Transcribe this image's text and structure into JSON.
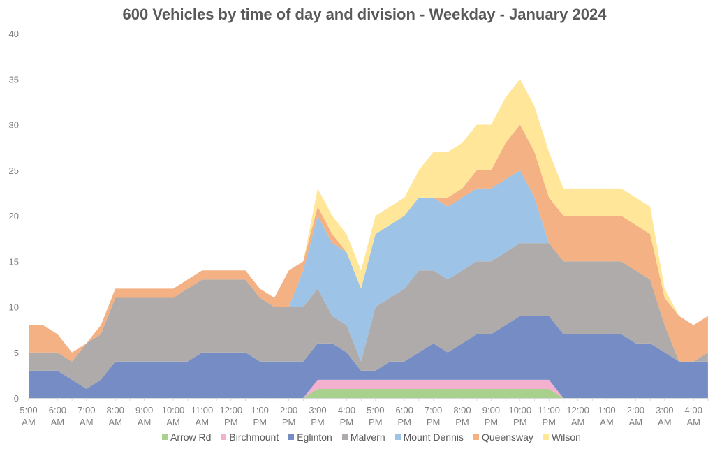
{
  "chart_data": {
    "type": "area",
    "stacked": true,
    "title": "600 Vehicles by time of day and division - Weekday - January 2024",
    "xlabel": "",
    "ylabel": "",
    "ylim": [
      0,
      40
    ],
    "yticks": [
      "0",
      "5",
      "10",
      "15",
      "20",
      "25",
      "30",
      "35",
      "40"
    ],
    "grid": false,
    "legend_position": "bottom",
    "x": [
      "5:00 AM",
      "5:30 AM",
      "6:00 AM",
      "6:30 AM",
      "7:00 AM",
      "7:30 AM",
      "8:00 AM",
      "8:30 AM",
      "9:00 AM",
      "9:30 AM",
      "10:00 AM",
      "10:30 AM",
      "11:00 AM",
      "11:30 AM",
      "12:00 PM",
      "12:30 PM",
      "1:00 PM",
      "1:30 PM",
      "2:00 PM",
      "2:30 PM",
      "3:00 PM",
      "3:30 PM",
      "4:00 PM",
      "4:30 PM",
      "5:00 PM",
      "5:30 PM",
      "6:00 PM",
      "6:30 PM",
      "7:00 PM",
      "7:30 PM",
      "8:00 PM",
      "8:30 PM",
      "9:00 PM",
      "9:30 PM",
      "10:00 PM",
      "10:30 PM",
      "11:00 PM",
      "11:30 PM",
      "12:00 AM",
      "12:30 AM",
      "1:00 AM",
      "1:30 AM",
      "2:00 AM",
      "2:30 AM",
      "3:00 AM",
      "3:30 AM",
      "4:00 AM",
      "4:30 AM"
    ],
    "xtick_labels": [
      {
        "line1": "5:00",
        "line2": "AM"
      },
      {
        "line1": "6:00",
        "line2": "AM"
      },
      {
        "line1": "7:00",
        "line2": "AM"
      },
      {
        "line1": "8:00",
        "line2": "AM"
      },
      {
        "line1": "9:00",
        "line2": "AM"
      },
      {
        "line1": "10:00",
        "line2": "AM"
      },
      {
        "line1": "11:00",
        "line2": "AM"
      },
      {
        "line1": "12:00",
        "line2": "PM"
      },
      {
        "line1": "1:00",
        "line2": "PM"
      },
      {
        "line1": "2:00",
        "line2": "PM"
      },
      {
        "line1": "3:00",
        "line2": "PM"
      },
      {
        "line1": "4:00",
        "line2": "PM"
      },
      {
        "line1": "5:00",
        "line2": "PM"
      },
      {
        "line1": "6:00",
        "line2": "PM"
      },
      {
        "line1": "7:00",
        "line2": "PM"
      },
      {
        "line1": "8:00",
        "line2": "PM"
      },
      {
        "line1": "9:00",
        "line2": "PM"
      },
      {
        "line1": "10:00",
        "line2": "PM"
      },
      {
        "line1": "11:00",
        "line2": "PM"
      },
      {
        "line1": "12:00",
        "line2": "AM"
      },
      {
        "line1": "1:00",
        "line2": "AM"
      },
      {
        "line1": "2:00",
        "line2": "AM"
      },
      {
        "line1": "3:00",
        "line2": "AM"
      },
      {
        "line1": "4:00",
        "line2": "AM"
      }
    ],
    "series": [
      {
        "name": "Arrow Rd",
        "color": "#a9d18e",
        "values": [
          0,
          0,
          0,
          0,
          0,
          0,
          0,
          0,
          0,
          0,
          0,
          0,
          0,
          0,
          0,
          0,
          0,
          0,
          0,
          0,
          1,
          1,
          1,
          1,
          1,
          1,
          1,
          1,
          1,
          1,
          1,
          1,
          1,
          1,
          1,
          1,
          1,
          0,
          0,
          0,
          0,
          0,
          0,
          0,
          0,
          0,
          0,
          0
        ]
      },
      {
        "name": "Birchmount",
        "color": "#f4b0cf",
        "values": [
          0,
          0,
          0,
          0,
          0,
          0,
          0,
          0,
          0,
          0,
          0,
          0,
          0,
          0,
          0,
          0,
          0,
          0,
          0,
          0,
          1,
          1,
          1,
          1,
          1,
          1,
          1,
          1,
          1,
          1,
          1,
          1,
          1,
          1,
          1,
          1,
          1,
          0,
          0,
          0,
          0,
          0,
          0,
          0,
          0,
          0,
          0,
          0
        ]
      },
      {
        "name": "Eglinton",
        "color": "#758cc5",
        "values": [
          3,
          3,
          3,
          2,
          1,
          2,
          4,
          4,
          4,
          4,
          4,
          4,
          5,
          5,
          5,
          5,
          4,
          4,
          4,
          4,
          4,
          4,
          3,
          1,
          1,
          2,
          2,
          3,
          4,
          3,
          4,
          5,
          5,
          6,
          7,
          7,
          7,
          7,
          7,
          7,
          7,
          7,
          6,
          6,
          5,
          4,
          4,
          4
        ]
      },
      {
        "name": "Malvern",
        "color": "#afabab",
        "values": [
          2,
          2,
          2,
          2,
          5,
          5,
          7,
          7,
          7,
          7,
          7,
          8,
          8,
          8,
          8,
          8,
          7,
          6,
          6,
          6,
          6,
          3,
          3,
          1,
          7,
          7,
          8,
          9,
          8,
          8,
          8,
          8,
          8,
          8,
          8,
          8,
          8,
          8,
          8,
          8,
          8,
          8,
          8,
          7,
          3,
          0,
          0,
          1
        ]
      },
      {
        "name": "Mount Dennis",
        "color": "#9dc3e6",
        "values": [
          0,
          0,
          0,
          0,
          0,
          0,
          0,
          0,
          0,
          0,
          0,
          0,
          0,
          0,
          0,
          0,
          0,
          0,
          0,
          4,
          8,
          8,
          8,
          8,
          8,
          8,
          8,
          8,
          8,
          8,
          8,
          8,
          8,
          8,
          8,
          5,
          0,
          0,
          0,
          0,
          0,
          0,
          0,
          0,
          0,
          0,
          0,
          0
        ]
      },
      {
        "name": "Queensway",
        "color": "#f4b183",
        "values": [
          3,
          3,
          2,
          1,
          0,
          1,
          1,
          1,
          1,
          1,
          1,
          1,
          1,
          1,
          1,
          1,
          1,
          1,
          4,
          1,
          1,
          1,
          0,
          0,
          0,
          0,
          0,
          0,
          0,
          1,
          1,
          2,
          2,
          4,
          5,
          5,
          5,
          5,
          5,
          5,
          5,
          5,
          5,
          5,
          3,
          5,
          4,
          4
        ]
      },
      {
        "name": "Wilson",
        "color": "#ffe699",
        "values": [
          0,
          0,
          0,
          0,
          0,
          0,
          0,
          0,
          0,
          0,
          0,
          0,
          0,
          0,
          0,
          0,
          0,
          0,
          0,
          0,
          2,
          2,
          2,
          2,
          2,
          2,
          2,
          3,
          5,
          5,
          5,
          5,
          5,
          5,
          5,
          5,
          5,
          3,
          3,
          3,
          3,
          3,
          3,
          3,
          1,
          0,
          0,
          0
        ]
      }
    ]
  }
}
